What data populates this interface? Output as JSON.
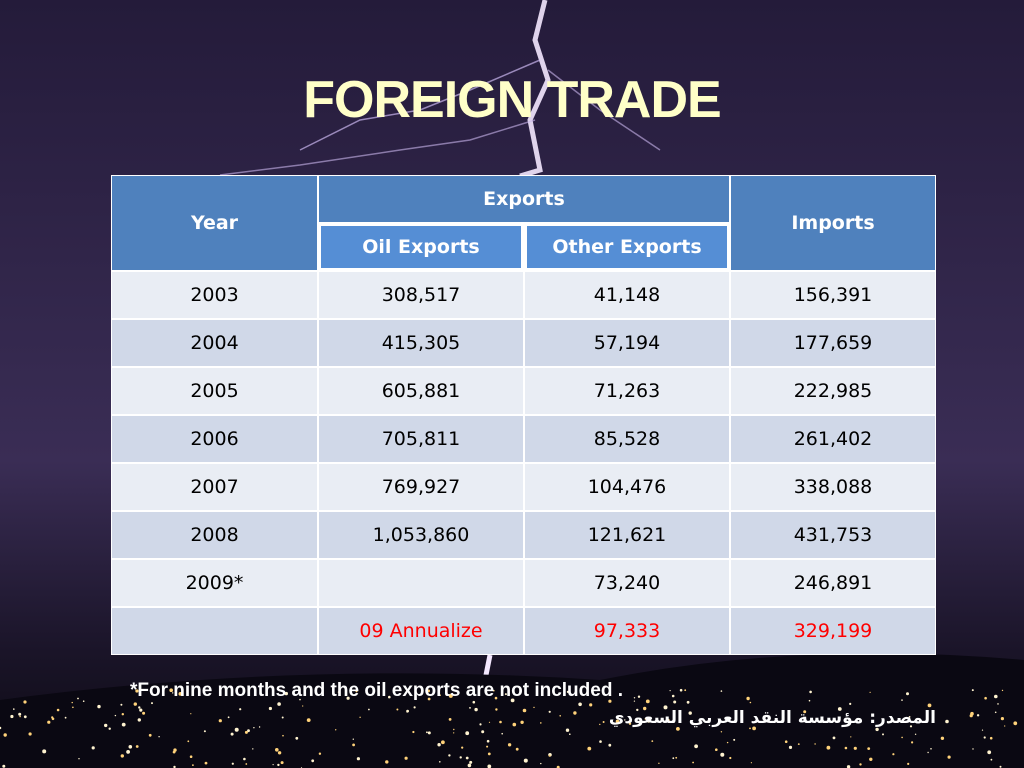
{
  "title": "FOREIGN TRADE",
  "table": {
    "header": {
      "year": "Year",
      "exports": "Exports",
      "oil_exports": "Oil Exports",
      "other_exports": "Other Exports",
      "imports": "Imports"
    },
    "rows": [
      [
        "2003",
        "308,517",
        "41,148",
        "156,391"
      ],
      [
        "2004",
        "415,305",
        "57,194",
        "177,659"
      ],
      [
        "2005",
        "605,881",
        "71,263",
        "222,985"
      ],
      [
        "2006",
        "705,811",
        "85,528",
        "261,402"
      ],
      [
        "2007",
        "769,927",
        "104,476",
        "338,088"
      ],
      [
        "2008",
        "1,053,860",
        "121,621",
        "431,753"
      ],
      [
        "2009*",
        null,
        "73,240",
        "246,891"
      ],
      [
        null,
        "09 Annualize",
        "97,333",
        "329,199"
      ]
    ]
  },
  "footnote": "*For nine months and the oil exports are not included .",
  "source": "المصدر: مؤسسة النقد العربي السعودي"
}
